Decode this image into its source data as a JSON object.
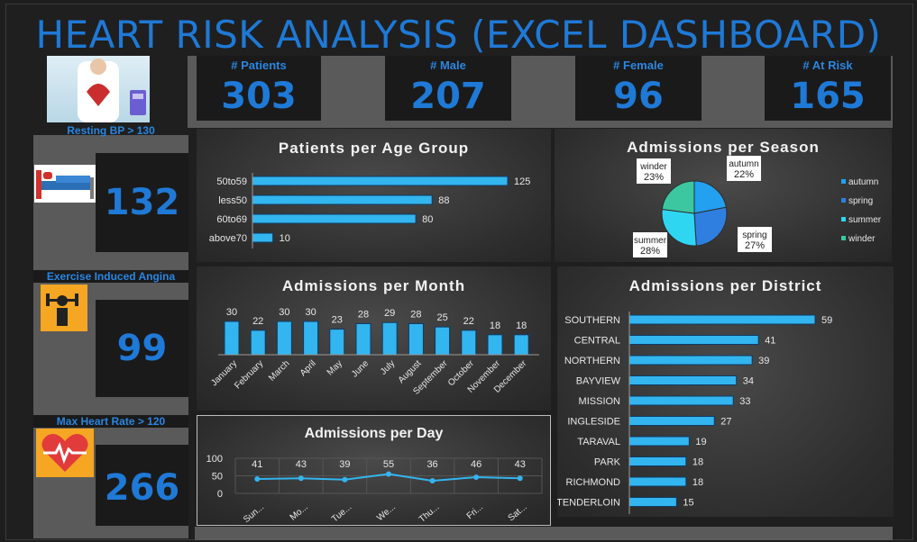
{
  "title": "HEART RISK ANALYSIS (EXCEL DASHBOARD)",
  "kpis": [
    {
      "label": "# Patients",
      "value": "303"
    },
    {
      "label": "# Male",
      "value": "207"
    },
    {
      "label": "# Female",
      "value": "96"
    },
    {
      "label": "# At Risk",
      "value": "165"
    }
  ],
  "side": {
    "resting_bp": {
      "label": "Resting BP > 130",
      "value": "132",
      "icon": "hospital-bed-icon"
    },
    "angina": {
      "label": "Exercise Induced Angina",
      "value": "99",
      "icon": "weightlifter-icon"
    },
    "heart_rate": {
      "label": "Max Heart Rate > 120",
      "value": "266",
      "icon": "heart-pulse-icon"
    },
    "header_icon": "doctor-heart-icon"
  },
  "colors": {
    "accent": "#1f79d6",
    "bar": "#33b5ef",
    "pie_autumn": "#23a0ef",
    "pie_spring": "#2f7fe0",
    "pie_summer": "#2fd6f2",
    "pie_winder": "#3cc7a0"
  },
  "chart_data": [
    {
      "type": "bar",
      "orientation": "horizontal",
      "title": "Patients per Age Group",
      "categories": [
        "50to59",
        "less50",
        "60to69",
        "above70"
      ],
      "values": [
        125,
        88,
        80,
        10
      ]
    },
    {
      "type": "pie",
      "title": "Admissions per Season",
      "categories": [
        "autumn",
        "spring",
        "summer",
        "winder"
      ],
      "values": [
        22,
        27,
        28,
        23
      ],
      "labels": [
        "22%",
        "27%",
        "28%",
        "23%"
      ],
      "legend": "right"
    },
    {
      "type": "bar",
      "title": "Admissions per Month",
      "categories": [
        "January",
        "February",
        "March",
        "April",
        "May",
        "June",
        "July",
        "August",
        "September",
        "October",
        "November",
        "December"
      ],
      "values": [
        30,
        22,
        30,
        30,
        23,
        28,
        29,
        28,
        25,
        22,
        18,
        18
      ]
    },
    {
      "type": "bar",
      "orientation": "horizontal",
      "title": "Admissions per District",
      "categories": [
        "SOUTHERN",
        "CENTRAL",
        "NORTHERN",
        "BAYVIEW",
        "MISSION",
        "INGLESIDE",
        "TARAVAL",
        "PARK",
        "RICHMOND",
        "TENDERLOIN"
      ],
      "values": [
        59,
        41,
        39,
        34,
        33,
        27,
        19,
        18,
        18,
        15
      ]
    },
    {
      "type": "line",
      "title": "Admissions per Day",
      "categories": [
        "Sun...",
        "Mo...",
        "Tue...",
        "We...",
        "Thu...",
        "Fri...",
        "Sat..."
      ],
      "values": [
        41,
        43,
        39,
        55,
        36,
        46,
        43
      ],
      "ylim": [
        0,
        100
      ],
      "yticks": [
        "100",
        "50",
        "0"
      ],
      "grid": true
    }
  ]
}
